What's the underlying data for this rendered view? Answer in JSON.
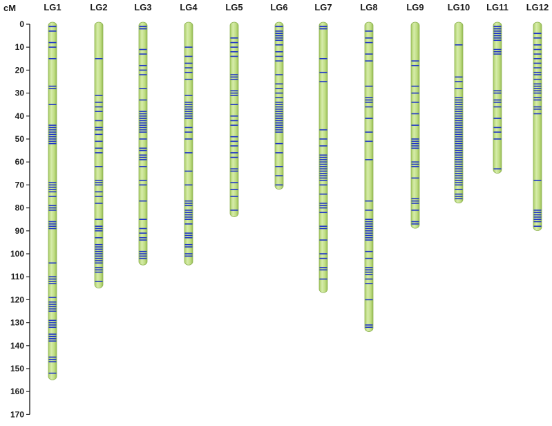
{
  "chart_data": {
    "type": "linkage-map",
    "axis_label": "cM",
    "ylim": [
      0,
      170
    ],
    "ticks": [
      0,
      10,
      20,
      30,
      40,
      50,
      60,
      70,
      80,
      90,
      100,
      110,
      120,
      130,
      140,
      150,
      160,
      170
    ],
    "colors": {
      "chromosome": "#c3df86",
      "chromosome_edge": "#8fb356",
      "marker": "#1f35c8",
      "axis": "#222222"
    },
    "groups": [
      {
        "name": "LG1",
        "length": 154,
        "markers": [
          1,
          3,
          8,
          10,
          15,
          27,
          28,
          35,
          44,
          45,
          46,
          47,
          48,
          49,
          50,
          51,
          52,
          69,
          70,
          71,
          72,
          73,
          75,
          79,
          80,
          81,
          86,
          87,
          88,
          89,
          104,
          110,
          111,
          112,
          113,
          119,
          121,
          122,
          123,
          124,
          125,
          129,
          130,
          131,
          132,
          135,
          136,
          137,
          138,
          145,
          146,
          147,
          152
        ]
      },
      {
        "name": "LG2",
        "length": 114,
        "markers": [
          15,
          31,
          34,
          36,
          38,
          42,
          45,
          46,
          48,
          51,
          54,
          56,
          62,
          68,
          69,
          70,
          73,
          75,
          78,
          85,
          88,
          89,
          90,
          93,
          96,
          97,
          98,
          99,
          100,
          101,
          102,
          103,
          104,
          106,
          107,
          108,
          112
        ]
      },
      {
        "name": "LG3",
        "length": 104,
        "markers": [
          1,
          2,
          11,
          13,
          18,
          20,
          22,
          28,
          33,
          38,
          39,
          40,
          41,
          42,
          43,
          44,
          45,
          46,
          47,
          50,
          54,
          55,
          57,
          58,
          59,
          62,
          68,
          70,
          77,
          85,
          89,
          91,
          93,
          94,
          99,
          100,
          101,
          102
        ]
      },
      {
        "name": "LG4",
        "length": 104,
        "markers": [
          10,
          14,
          17,
          19,
          21,
          24,
          31,
          34,
          35,
          36,
          37,
          38,
          39,
          40,
          41,
          45,
          47,
          50,
          56,
          64,
          70,
          77,
          78,
          79,
          81,
          82,
          83,
          84,
          85,
          87,
          91,
          92,
          93,
          96,
          97,
          100,
          101
        ]
      },
      {
        "name": "LG5",
        "length": 83,
        "markers": [
          6,
          8,
          10,
          12,
          14,
          22,
          23,
          24,
          29,
          30,
          31,
          35,
          40,
          42,
          44,
          49,
          51,
          53,
          56,
          58,
          63,
          64,
          69,
          72,
          75,
          81
        ]
      },
      {
        "name": "LG6",
        "length": 71,
        "markers": [
          1,
          3,
          4,
          5,
          6,
          7,
          9,
          12,
          14,
          16,
          22,
          26,
          28,
          30,
          32,
          34,
          35,
          36,
          37,
          38,
          39,
          40,
          41,
          42,
          43,
          44,
          45,
          46,
          47,
          52,
          56,
          62,
          66,
          70
        ]
      },
      {
        "name": "LG7",
        "length": 116,
        "markers": [
          1,
          2,
          15,
          21,
          25,
          46,
          50,
          53,
          57,
          58,
          59,
          60,
          61,
          62,
          63,
          64,
          65,
          66,
          67,
          68,
          70,
          74,
          78,
          79,
          80,
          82,
          88,
          89,
          94,
          100,
          102,
          106,
          107,
          111
        ]
      },
      {
        "name": "LG8",
        "length": 133,
        "markers": [
          3,
          6,
          8,
          13,
          16,
          27,
          32,
          33,
          34,
          36,
          41,
          47,
          51,
          59,
          77,
          81,
          85,
          86,
          87,
          88,
          89,
          90,
          91,
          92,
          93,
          94,
          99,
          102,
          106,
          107,
          108,
          109,
          111,
          113,
          120,
          131,
          132
        ]
      },
      {
        "name": "LG9",
        "length": 88,
        "markers": [
          16,
          18,
          27,
          30,
          34,
          39,
          44,
          50,
          51,
          52,
          53,
          54,
          60,
          61,
          62,
          67,
          76,
          77,
          78,
          81,
          86,
          87
        ]
      },
      {
        "name": "LG10",
        "length": 77,
        "markers": [
          9,
          23,
          25,
          28,
          32,
          33,
          34,
          35,
          36,
          37,
          38,
          39,
          40,
          41,
          42,
          43,
          44,
          45,
          46,
          47,
          48,
          49,
          50,
          51,
          52,
          53,
          54,
          55,
          56,
          57,
          58,
          59,
          60,
          61,
          62,
          63,
          64,
          65,
          66,
          67,
          68,
          69,
          70,
          72,
          74,
          75,
          76
        ]
      },
      {
        "name": "LG11",
        "length": 64,
        "markers": [
          1,
          2,
          3,
          4,
          5,
          6,
          7,
          11,
          12,
          13,
          29,
          30,
          33,
          34,
          36,
          41,
          45,
          47,
          50,
          63
        ]
      },
      {
        "name": "LG12",
        "length": 89,
        "markers": [
          4,
          6,
          9,
          11,
          13,
          15,
          17,
          19,
          21,
          22,
          24,
          26,
          27,
          28,
          29,
          30,
          32,
          33,
          36,
          37,
          39,
          68,
          81,
          82,
          83,
          84,
          85,
          86,
          88
        ]
      }
    ]
  }
}
